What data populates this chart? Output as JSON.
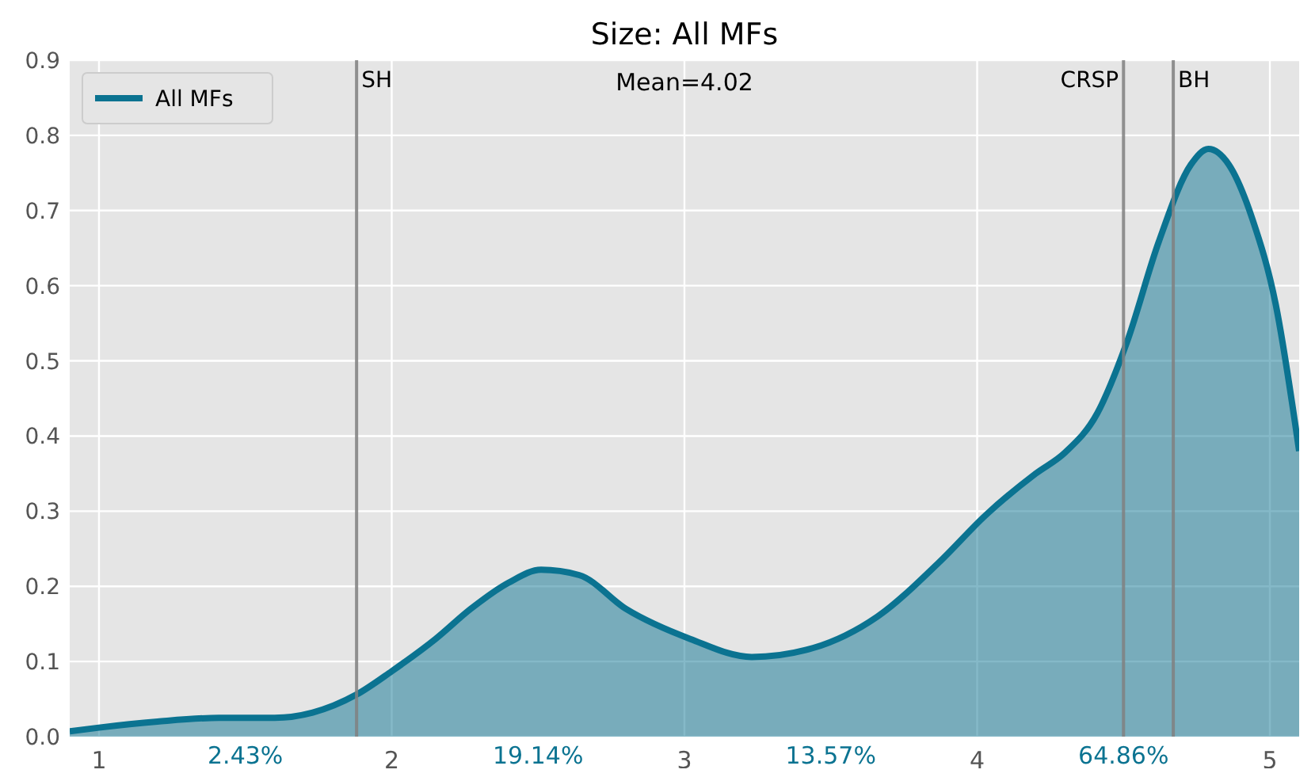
{
  "chart_data": {
    "type": "area",
    "title": "Size: All MFs",
    "x": [
      0.9,
      1.0,
      1.2,
      1.41,
      1.6,
      1.73,
      1.88,
      2.0,
      2.15,
      2.27,
      2.4,
      2.51,
      2.64,
      2.8,
      3.02,
      3.23,
      3.44,
      3.66,
      3.87,
      4.03,
      4.2,
      4.3,
      4.41,
      4.51,
      4.62,
      4.73,
      4.79,
      4.86,
      4.94,
      5.02,
      5.1
    ],
    "series": [
      {
        "name": "All MFs",
        "color": "#0b7391",
        "values": [
          0.007,
          0.012,
          0.02,
          0.025,
          0.025,
          0.032,
          0.056,
          0.087,
          0.13,
          0.17,
          0.205,
          0.222,
          0.215,
          0.17,
          0.13,
          0.106,
          0.118,
          0.16,
          0.232,
          0.295,
          0.35,
          0.378,
          0.43,
          0.523,
          0.658,
          0.761,
          0.782,
          0.761,
          0.689,
          0.575,
          0.38
        ]
      }
    ],
    "xlim": [
      0.9,
      5.1
    ],
    "xticks": [
      1,
      2,
      3,
      4,
      5
    ],
    "ylim": [
      0,
      0.9
    ],
    "yticks": [
      {
        "value": 0,
        "label": "0.0"
      },
      0.1,
      0.2,
      0.3,
      0.4,
      0.5,
      0.6,
      0.7,
      0.8,
      0.9
    ],
    "ref_lines": [
      {
        "axis": "x",
        "value": 1.88,
        "label": "SH",
        "color": "#808080"
      },
      {
        "axis": "x",
        "value": 4.5,
        "label": "CRSP",
        "color": "#808080"
      },
      {
        "axis": "x",
        "value": 4.67,
        "label": "BH",
        "color": "#808080"
      }
    ],
    "annotations": [
      "Mean=4.02",
      "2.43%",
      "19.14%",
      "13.57%",
      "64.86%"
    ],
    "grid": true,
    "legend": "top left"
  }
}
